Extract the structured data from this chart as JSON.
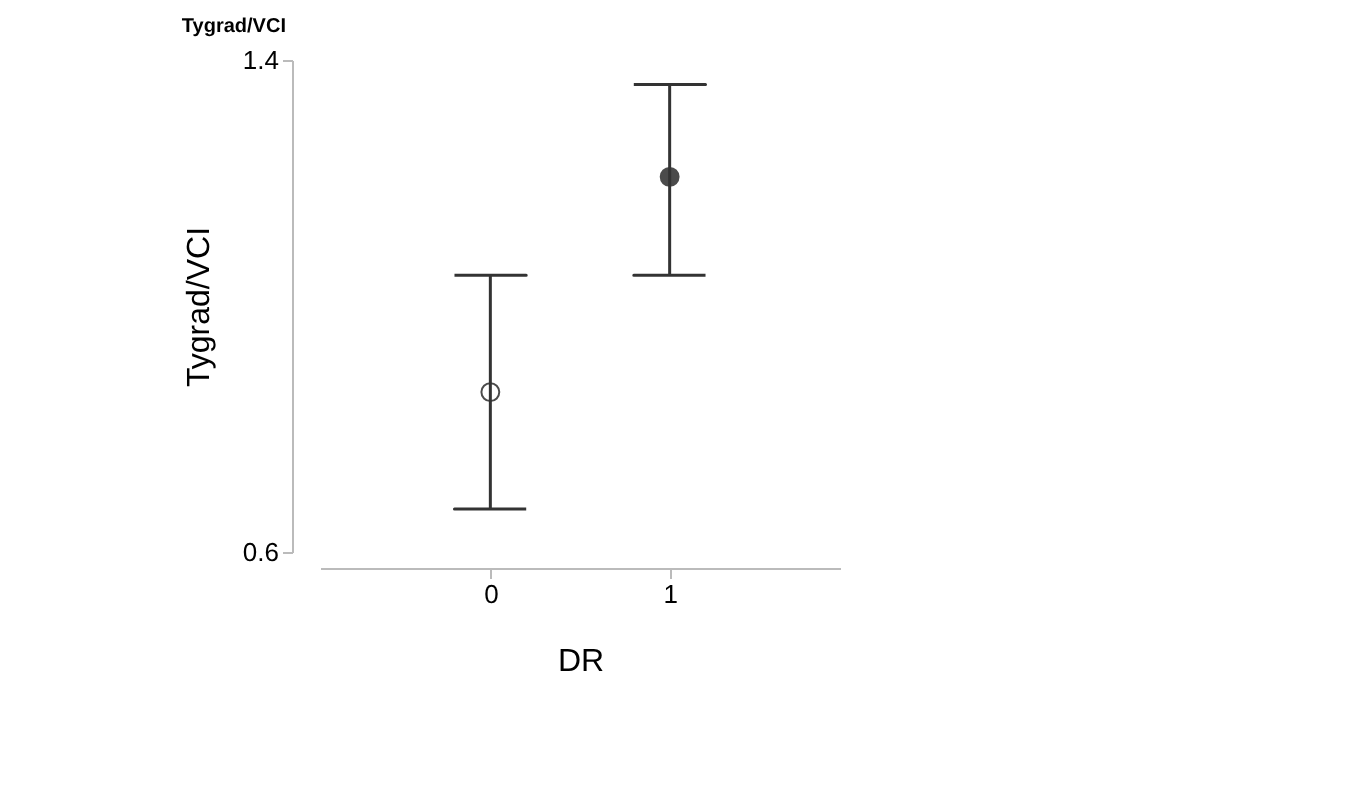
{
  "chart_data": {
    "type": "scatter",
    "title": "Tygrad/VCI",
    "xlabel": "DR",
    "ylabel": "Tygrad/VCI",
    "categories": [
      "0",
      "1"
    ],
    "values": [
      0.86,
      1.21
    ],
    "errors": [
      [
        0.67,
        1.05
      ],
      [
        1.05,
        1.36
      ]
    ],
    "colors": [
      "#ffffff",
      "#000000"
    ],
    "ylim": [
      0.6,
      1.4
    ],
    "yticks": [
      0.6,
      1.4
    ],
    "marker": "circle",
    "grid": false
  }
}
